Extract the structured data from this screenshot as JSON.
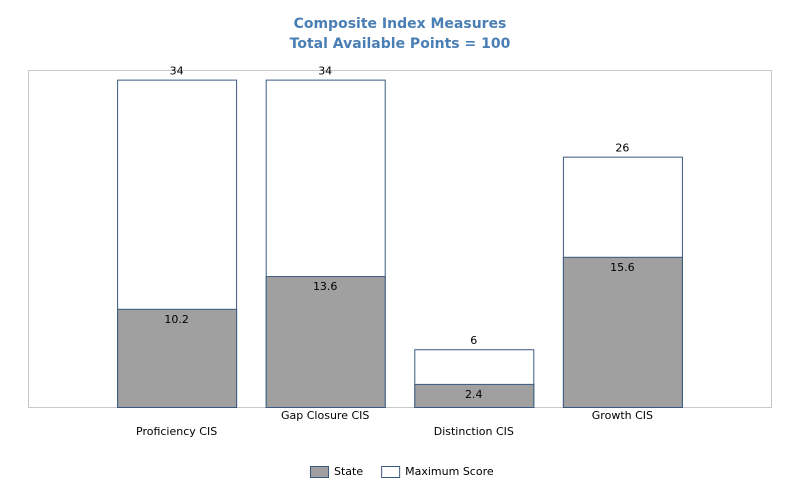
{
  "chart_data": {
    "type": "bar",
    "title": "Composite Index Measures",
    "subtitle": "Total Available Points = 100",
    "categories": [
      "Proficiency CIS",
      "Gap Closure CIS",
      "Distinction CIS",
      "Growth CIS"
    ],
    "series": [
      {
        "name": "State",
        "color": "#a0a0a0",
        "values": [
          10.2,
          13.6,
          2.4,
          15.6
        ]
      },
      {
        "name": "Maximum Score",
        "color": "#ffffff",
        "values": [
          34,
          34,
          6,
          26
        ]
      }
    ],
    "ylim": [
      0,
      35
    ],
    "legend": "bottom"
  }
}
